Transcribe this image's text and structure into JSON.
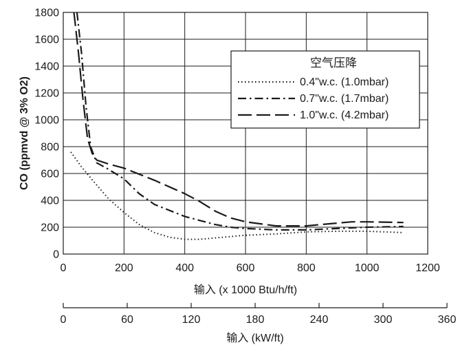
{
  "chart_data": {
    "type": "line",
    "title": "",
    "ylabel": "CO (ppmvd @ 3% O2)",
    "xlabel": "输入 (x 1000 Btu/h/ft)",
    "xlabel2": "输入 (kW/ft)",
    "xlim": [
      0,
      1200
    ],
    "ylim": [
      0,
      1800
    ],
    "xticks": [
      0,
      200,
      400,
      600,
      800,
      1000,
      1200
    ],
    "yticks": [
      0,
      200,
      400,
      600,
      800,
      1000,
      1200,
      1400,
      1600,
      1800
    ],
    "x2lim": [
      0,
      360
    ],
    "x2ticks": [
      0,
      60,
      120,
      180,
      240,
      300,
      360
    ],
    "grid": true,
    "legend": {
      "title": "空气压降",
      "placement": "top-right"
    },
    "series": [
      {
        "name": "0.4\"w.c. (1.0mbar)",
        "style": "dotted",
        "x": [
          25,
          60,
          100,
          150,
          200,
          250,
          300,
          350,
          400,
          450,
          500,
          600,
          700,
          800,
          900,
          1000,
          1120
        ],
        "y": [
          760,
          650,
          540,
          410,
          310,
          220,
          160,
          125,
          110,
          110,
          120,
          140,
          150,
          165,
          170,
          170,
          160
        ]
      },
      {
        "name": "0.7\"w.c. (1.7mbar)",
        "style": "dash-dot",
        "x": [
          45,
          60,
          75,
          90,
          110,
          150,
          200,
          250,
          300,
          400,
          500,
          550,
          600,
          700,
          800,
          900,
          1000,
          1120
        ],
        "y": [
          1800,
          1500,
          1100,
          800,
          680,
          630,
          560,
          450,
          370,
          280,
          220,
          200,
          190,
          180,
          180,
          190,
          200,
          205
        ]
      },
      {
        "name": "1.0\"w.c. (4.2mbar)",
        "style": "dashed",
        "x": [
          35,
          50,
          65,
          80,
          95,
          110,
          150,
          200,
          300,
          400,
          450,
          500,
          550,
          600,
          700,
          800,
          900,
          950,
          1000,
          1120
        ],
        "y": [
          1800,
          1500,
          1150,
          860,
          750,
          700,
          670,
          640,
          550,
          450,
          390,
          320,
          270,
          240,
          210,
          210,
          230,
          240,
          240,
          235
        ]
      }
    ]
  }
}
